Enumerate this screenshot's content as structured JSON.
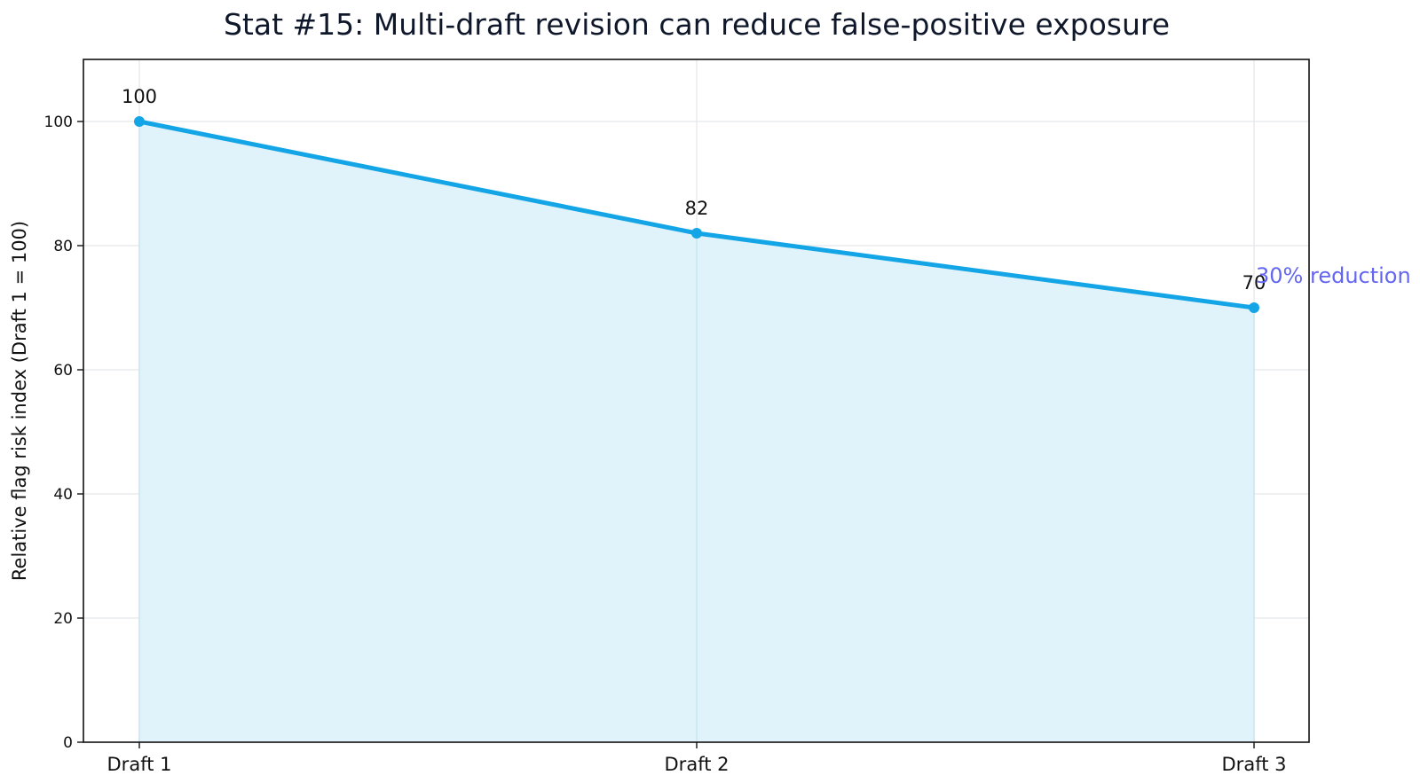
{
  "chart_data": {
    "type": "line",
    "title": "Stat #15: Multi-draft revision can reduce false-positive exposure",
    "xlabel": "",
    "ylabel": "Relative flag risk index (Draft 1 = 100)",
    "categories": [
      "Draft 1",
      "Draft 2",
      "Draft 3"
    ],
    "values": [
      100,
      82,
      70
    ],
    "data_labels": [
      "100",
      "82",
      "70"
    ],
    "ylim": [
      0,
      110
    ],
    "yticks": [
      0,
      20,
      40,
      60,
      80,
      100
    ],
    "ytick_labels": [
      "0",
      "20",
      "40",
      "60",
      "80",
      "100"
    ],
    "grid": true,
    "fill_under_line": true,
    "annotation": {
      "text": "30% reduction",
      "category": "Draft 3",
      "value": 70
    },
    "colors": {
      "line": "#14a5e6",
      "fill": "#e0f3fa",
      "annotation": "#6366f1",
      "grid": "#e5e7eb",
      "axis": "#111111"
    }
  }
}
